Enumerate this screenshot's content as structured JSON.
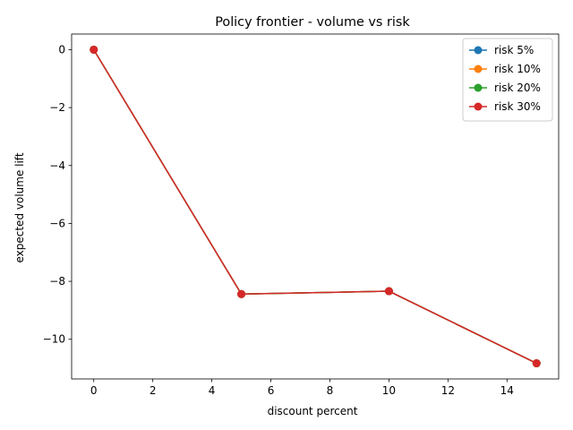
{
  "chart_data": {
    "type": "line",
    "title": "Policy frontier - volume vs risk",
    "xlabel": "discount percent",
    "ylabel": "expected volume lift",
    "x": [
      0,
      5,
      10,
      15
    ],
    "xlim": [
      -0.75,
      15.75
    ],
    "ylim": [
      -11.37,
      0.54
    ],
    "xticks": [
      0,
      2,
      4,
      6,
      8,
      10,
      12,
      14
    ],
    "xtick_labels": [
      "0",
      "2",
      "4",
      "6",
      "8",
      "10",
      "12",
      "14"
    ],
    "yticks": [
      0,
      -2,
      -4,
      -6,
      -8,
      -10
    ],
    "ytick_labels": [
      "0",
      "−2",
      "−4",
      "−6",
      "−8",
      "−10"
    ],
    "grid": false,
    "legend_position": "top-right",
    "series": [
      {
        "name": "risk 5%",
        "color": "#1f77b4",
        "values": [
          0,
          -8.44,
          -8.34,
          -10.83
        ]
      },
      {
        "name": "risk 10%",
        "color": "#ff7f0e",
        "values": [
          0,
          -8.44,
          -8.34,
          -10.83
        ]
      },
      {
        "name": "risk 20%",
        "color": "#2ca02c",
        "values": [
          0,
          -8.44,
          -8.34,
          -10.83
        ]
      },
      {
        "name": "risk 30%",
        "color": "#d62728",
        "values": [
          0,
          -8.44,
          -8.34,
          -10.83
        ]
      }
    ]
  }
}
